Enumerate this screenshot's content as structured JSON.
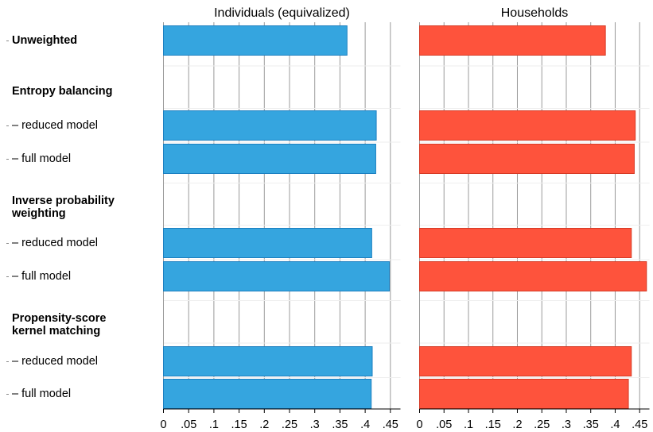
{
  "chart_data": [
    {
      "type": "bar",
      "orientation": "horizontal",
      "title": "Individuals (equivalized)",
      "color": "#35A5DF",
      "edge_color": "#1B7FC0",
      "xlim": [
        0,
        0.47
      ],
      "xticks": [
        0,
        0.05,
        0.1,
        0.15,
        0.2,
        0.25,
        0.3,
        0.35,
        0.4,
        0.45
      ],
      "xtick_labels": [
        "0",
        ".05",
        ".1",
        ".15",
        ".2",
        ".25",
        ".3",
        ".35",
        ".4",
        ".45"
      ],
      "grid": true,
      "categories": [
        "Unweighted",
        "– reduced model",
        "– full model",
        "– reduced model",
        "– full model",
        "– reduced model",
        "– full model"
      ],
      "values": [
        0.364,
        0.422,
        0.421,
        0.413,
        0.448,
        0.414,
        0.412
      ]
    },
    {
      "type": "bar",
      "orientation": "horizontal",
      "title": "Households",
      "color": "#FE533C",
      "edge_color": "#D63A25",
      "xlim": [
        0,
        0.47
      ],
      "xticks": [
        0,
        0.05,
        0.1,
        0.15,
        0.2,
        0.25,
        0.3,
        0.35,
        0.4,
        0.45
      ],
      "xtick_labels": [
        "0",
        ".05",
        ".1",
        ".15",
        ".2",
        ".25",
        ".3",
        ".35",
        ".4",
        ".45"
      ],
      "grid": true,
      "categories": [
        "Unweighted",
        "– reduced model",
        "– full model",
        "– reduced model",
        "– full model",
        "– reduced model",
        "– full model"
      ],
      "values": [
        0.38,
        0.441,
        0.439,
        0.433,
        0.464,
        0.433,
        0.427
      ]
    }
  ],
  "rows": [
    {
      "label": "Unweighted",
      "bold": true,
      "has_bar": true,
      "bar_index": 0
    },
    {
      "label": "Entropy balancing",
      "bold": true,
      "has_bar": false
    },
    {
      "label": "– reduced model",
      "bold": false,
      "has_bar": true,
      "bar_index": 1
    },
    {
      "label": "– full model",
      "bold": false,
      "has_bar": true,
      "bar_index": 2
    },
    {
      "label": "Inverse probability weighting",
      "bold": true,
      "has_bar": false
    },
    {
      "label": "– reduced model",
      "bold": false,
      "has_bar": true,
      "bar_index": 3
    },
    {
      "label": "– full model",
      "bold": false,
      "has_bar": true,
      "bar_index": 4
    },
    {
      "label": "Propensity-score kernel matching",
      "bold": true,
      "has_bar": false
    },
    {
      "label": "– reduced model",
      "bold": false,
      "has_bar": true,
      "bar_index": 5
    },
    {
      "label": "– full model",
      "bold": false,
      "has_bar": true,
      "bar_index": 6
    }
  ]
}
